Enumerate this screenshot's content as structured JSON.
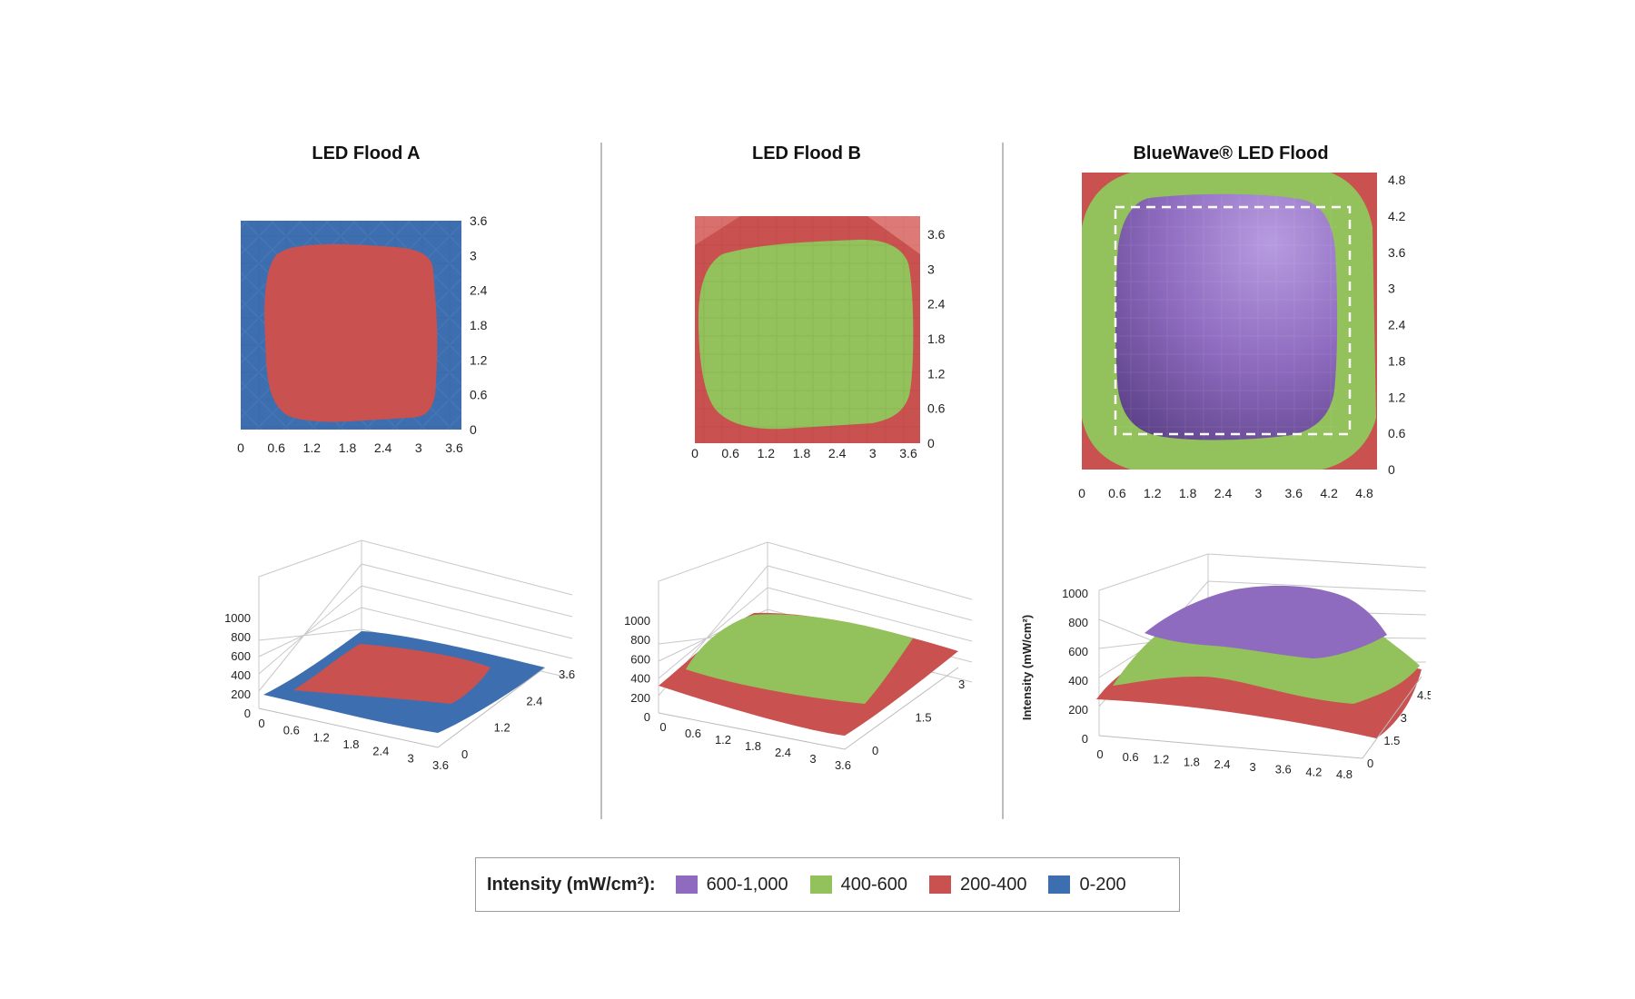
{
  "figure": {
    "legend": {
      "title": "Intensity (mW/cm²):",
      "items": [
        {
          "label": "600-1,000",
          "color": "#8e6bbf"
        },
        {
          "label": "400-600",
          "color": "#93c15b"
        },
        {
          "label": "200-400",
          "color": "#c9514f"
        },
        {
          "label": "0-200",
          "color": "#3d6fb0"
        }
      ]
    }
  },
  "chart_data": [
    {
      "type": "heatmap",
      "title": "LED Flood A",
      "view": "top",
      "x_ticks": [
        "0",
        "0.6",
        "1.2",
        "1.8",
        "2.4",
        "3",
        "3.6"
      ],
      "y_ticks": [
        "0",
        "0.6",
        "1.2",
        "1.8",
        "2.4",
        "3",
        "3.6"
      ],
      "xlim": [
        0,
        3.6
      ],
      "ylim": [
        0,
        3.6
      ],
      "bands_present": [
        "0-200",
        "200-400"
      ],
      "regions": [
        {
          "band": "0-200",
          "area": "outer border"
        },
        {
          "band": "200-400",
          "area": "central rounded square"
        }
      ]
    },
    {
      "type": "heatmap",
      "title": "LED Flood B",
      "view": "top",
      "x_ticks": [
        "0",
        "0.6",
        "1.2",
        "1.8",
        "2.4",
        "3",
        "3.6"
      ],
      "y_ticks": [
        "0",
        "0.6",
        "1.2",
        "1.8",
        "2.4",
        "3",
        "3.6"
      ],
      "xlim": [
        0,
        3.6
      ],
      "ylim": [
        0,
        3.6
      ],
      "bands_present": [
        "200-400",
        "400-600"
      ],
      "regions": [
        {
          "band": "200-400",
          "area": "outer border"
        },
        {
          "band": "400-600",
          "area": "central rounded square"
        }
      ]
    },
    {
      "type": "heatmap",
      "title": "BlueWave® LED Flood",
      "view": "top",
      "x_ticks": [
        "0",
        "0.6",
        "1.2",
        "1.8",
        "2.4",
        "3",
        "3.6",
        "4.2",
        "4.8"
      ],
      "y_ticks": [
        "0",
        "0.6",
        "1.2",
        "1.8",
        "2.4",
        "3",
        "3.6",
        "4.2",
        "4.8"
      ],
      "xlim": [
        0,
        4.8
      ],
      "ylim": [
        0,
        4.8
      ],
      "bands_present": [
        "200-400",
        "400-600",
        "600-1,000"
      ],
      "regions": [
        {
          "band": "200-400",
          "area": "corners"
        },
        {
          "band": "400-600",
          "area": "ring"
        },
        {
          "band": "600-1,000",
          "area": "center"
        }
      ],
      "annotation": "dashed white rectangle"
    },
    {
      "type": "area",
      "subtype": "3d-surface",
      "series_of": "LED Flood A",
      "z_ticks": [
        "0",
        "200",
        "400",
        "600",
        "800",
        "1000"
      ],
      "x_ticks": [
        "0",
        "0.6",
        "1.2",
        "1.8",
        "2.4",
        "3",
        "3.6"
      ],
      "y_ticks": [
        "0",
        "1.2",
        "2.4",
        "3.6"
      ],
      "zlim": [
        0,
        1000
      ],
      "bands_present": [
        "0-200",
        "200-400"
      ]
    },
    {
      "type": "area",
      "subtype": "3d-surface",
      "series_of": "LED Flood B",
      "z_ticks": [
        "0",
        "200",
        "400",
        "600",
        "800",
        "1000"
      ],
      "x_ticks": [
        "0",
        "0.6",
        "1.2",
        "1.8",
        "2.4",
        "3",
        "3.6"
      ],
      "y_ticks": [
        "0",
        "1.5",
        "3"
      ],
      "zlim": [
        0,
        1000
      ],
      "bands_present": [
        "200-400",
        "400-600"
      ]
    },
    {
      "type": "area",
      "subtype": "3d-surface",
      "series_of": "BlueWave® LED Flood",
      "zlabel": "Intensity (mW/cm²)",
      "z_ticks": [
        "0",
        "200",
        "400",
        "600",
        "800",
        "1000"
      ],
      "x_ticks": [
        "0",
        "0.6",
        "1.2",
        "1.8",
        "2.4",
        "3",
        "3.6",
        "4.2",
        "4.8"
      ],
      "y_ticks": [
        "0",
        "1.5",
        "3",
        "4.5"
      ],
      "zlim": [
        0,
        1000
      ],
      "bands_present": [
        "200-400",
        "400-600",
        "600-1,000"
      ]
    }
  ]
}
